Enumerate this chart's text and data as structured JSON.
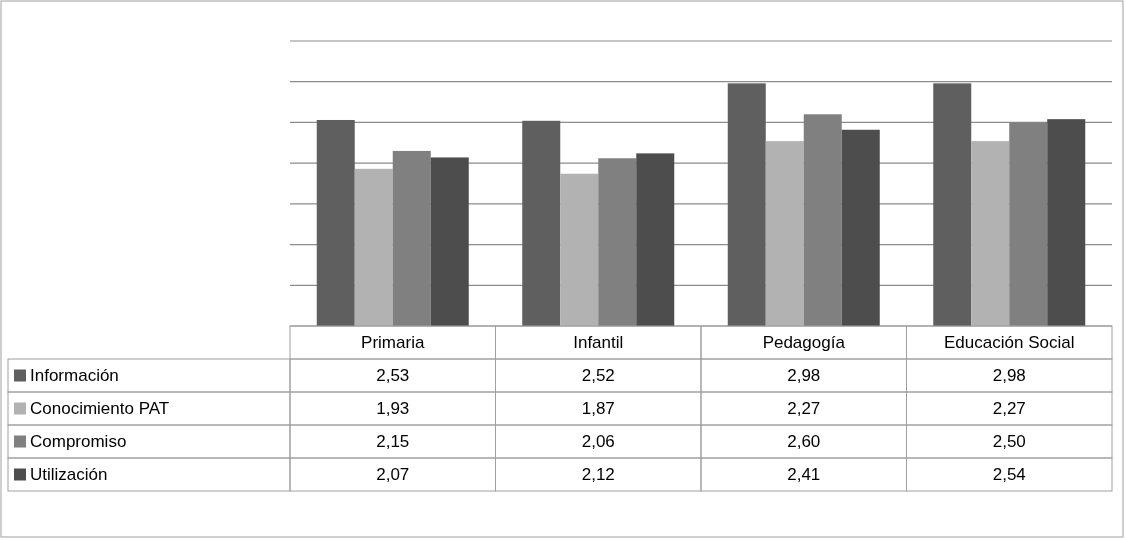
{
  "chart_data": {
    "type": "bar",
    "categories": [
      "Primaria",
      "Infantil",
      "Pedagogía",
      "Educación Social"
    ],
    "series": [
      {
        "name": "Información",
        "color": "#5f5f5f",
        "values": [
          2.53,
          2.52,
          2.98,
          2.98
        ],
        "value_labels": [
          "2,53",
          "2,52",
          "2,98",
          "2,98"
        ]
      },
      {
        "name": "Conocimiento PAT",
        "color": "#b2b2b2",
        "values": [
          1.93,
          1.87,
          2.27,
          2.27
        ],
        "value_labels": [
          "1,93",
          "1,87",
          "2,27",
          "2,27"
        ]
      },
      {
        "name": "Compromiso",
        "color": "#808080",
        "values": [
          2.15,
          2.06,
          2.6,
          2.5
        ],
        "value_labels": [
          "2,15",
          "2,06",
          "2,60",
          "2,50"
        ]
      },
      {
        "name": "Utilización",
        "color": "#4d4d4d",
        "values": [
          2.07,
          2.12,
          2.41,
          2.54
        ],
        "value_labels": [
          "2,07",
          "2,12",
          "2,41",
          "2,54"
        ]
      }
    ],
    "ylim": [
      0,
      3.5
    ],
    "yticks": [
      {
        "value": 0,
        "label": null
      },
      {
        "value": 0.5,
        "label": null
      },
      {
        "value": 1,
        "label": null
      },
      {
        "value": 1.5,
        "label": null
      },
      {
        "value": 2,
        "label": null
      },
      {
        "value": 2.5,
        "label": null
      },
      {
        "value": 3,
        "label": null
      },
      {
        "value": 3.5,
        "label": null
      }
    ],
    "tick_labels": "x",
    "grid": true,
    "legend": "bottom"
  }
}
